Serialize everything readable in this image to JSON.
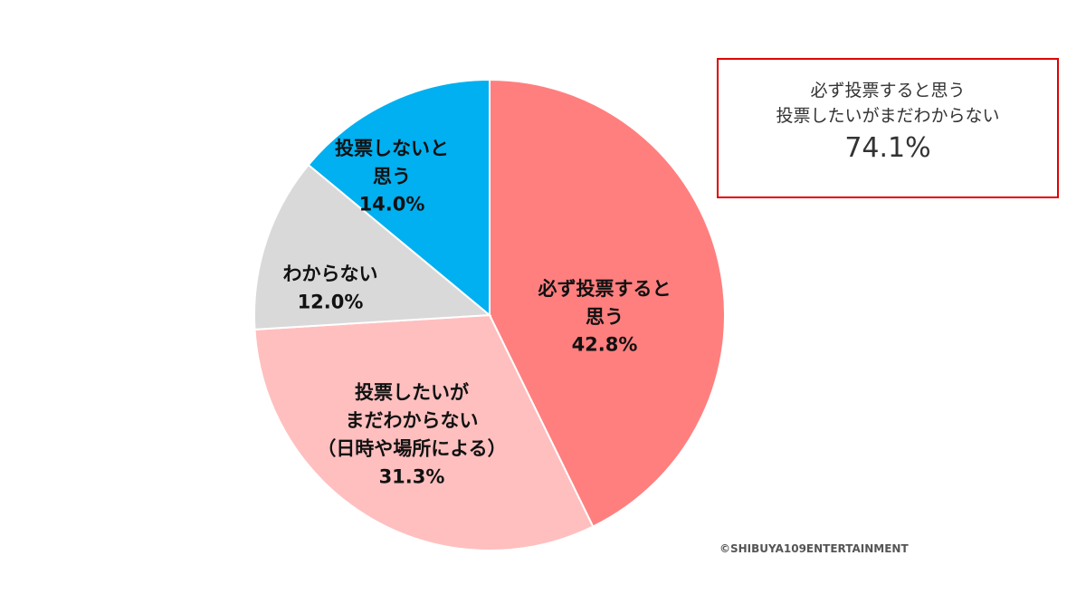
{
  "chart_data": {
    "type": "pie",
    "categories": [
      "必ず投票すると\n思う",
      "投票したいが\nまだわからない\n（日時や場所による）",
      "わからない",
      "投票しないと\n思う"
    ],
    "values": [
      42.8,
      31.3,
      12.0,
      14.0
    ],
    "value_labels": [
      "42.8%",
      "31.3%",
      "12.0%",
      "14.0%"
    ],
    "colors": [
      "#ff7f7f",
      "#ffbfbf",
      "#d9d9d9",
      "#00b0f0"
    ],
    "annotation": {
      "text": "必ず投票すると思う\n投票したいがまだわからない",
      "value": "74.1%"
    },
    "source": "©SHIBUYA109ENTERTAINMENT"
  }
}
